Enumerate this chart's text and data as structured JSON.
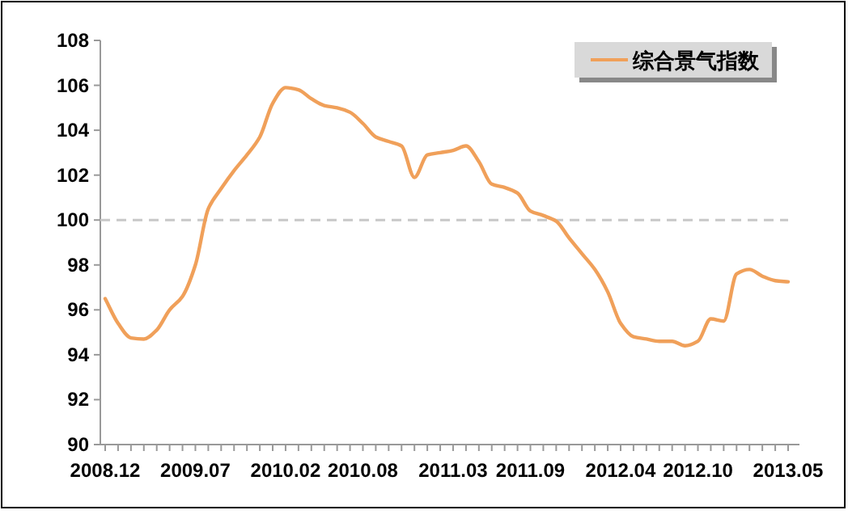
{
  "chart_data": {
    "type": "line",
    "categories": [
      "2008.12",
      null,
      null,
      null,
      null,
      null,
      null,
      "2009.07",
      null,
      null,
      null,
      null,
      null,
      null,
      "2010.02",
      null,
      null,
      null,
      null,
      null,
      "2010.08",
      null,
      null,
      null,
      null,
      null,
      null,
      "2011.03",
      null,
      null,
      null,
      null,
      null,
      "2011.09",
      null,
      null,
      null,
      null,
      null,
      null,
      "2012.04",
      null,
      null,
      null,
      null,
      null,
      "2012.10",
      null,
      null,
      null,
      null,
      null,
      null,
      "2013.05"
    ],
    "series": [
      {
        "name": "综合景气指数",
        "color": "#f0a05a",
        "values": [
          96.5,
          95.4,
          94.75,
          94.7,
          95.1,
          96.0,
          96.6,
          98.0,
          100.5,
          101.4,
          102.2,
          102.9,
          103.7,
          105.2,
          105.9,
          105.8,
          105.4,
          105.1,
          105.0,
          104.8,
          104.3,
          103.7,
          103.5,
          103.3,
          101.9,
          102.9,
          103.0,
          103.1,
          103.3,
          102.6,
          101.6,
          101.45,
          101.2,
          100.4,
          100.2,
          99.95,
          99.2,
          98.5,
          97.8,
          96.8,
          95.4,
          94.8,
          94.7,
          94.6,
          94.6,
          94.4,
          94.6,
          95.6,
          95.5,
          97.6,
          97.8,
          97.5,
          97.3,
          97.25
        ]
      }
    ],
    "ylim": [
      90,
      108
    ],
    "yticks": [
      90,
      92,
      94,
      96,
      98,
      100,
      102,
      104,
      106,
      108
    ],
    "ref_lines": [
      {
        "axis": "y",
        "value": 100,
        "color": "#c8c8c8",
        "line_style": "dashed"
      }
    ],
    "legend": "top right",
    "grid": false,
    "marker": "none",
    "line_style": "solid"
  }
}
